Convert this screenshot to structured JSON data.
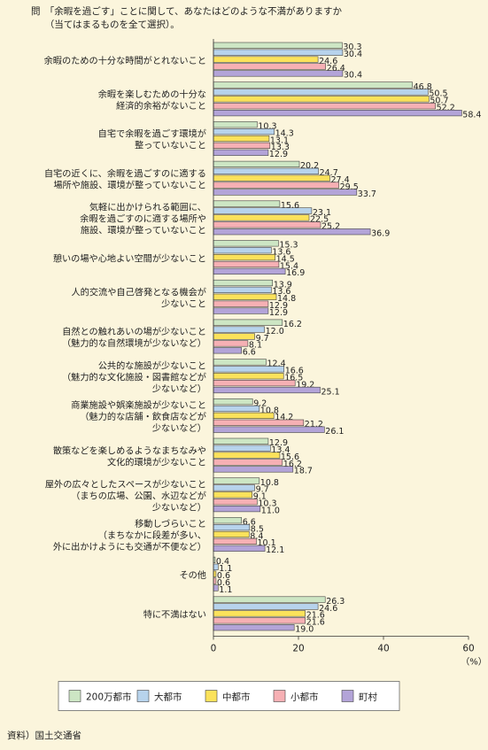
{
  "question": "問　「余暇を過ごす」ことに関して、あなたはどのような不満がありますか\n　　（当てはまるものを全て選択）。",
  "source": "資料）国土交通省",
  "chart_data": {
    "type": "bar",
    "orientation": "horizontal",
    "categories": [
      "余暇のための十分な時間がとれないこと",
      "余暇を楽しむための十分な\n経済的余裕がないこと",
      "自宅で余暇を過ごす環境が\n整っていないこと",
      "自宅の近くに、余暇を過ごすのに適する\n場所や施設、環境が整っていないこと",
      "気軽に出かけられる範囲に、\n余暇を過ごすのに適する場所や\n施設、環境が整っていないこと",
      "憩いの場や心地よい空間が少ないこと",
      "人的交流や自己啓発となる機会が\n少ないこと",
      "自然との触れあいの場が少ないこと\n（魅力的な自然環境が少ないなど）",
      "公共的な施設が少ないこと\n（魅力的な文化施設・図書館などが\n少ないなど）",
      "商業施設や娯楽施設が少ないこと\n（魅力的な店舗・飲食店などが\n少ないなど）",
      "散策などを楽しめるようなまちなみや\n文化的環境が少ないこと",
      "屋外の広々としたスペースが少ないこと\n（まちの広場、公園、水辺などが\n少ないなど）",
      "移動しづらいこと\n（まちなかに段差が多い、\n外に出かけようにも交通が不便など）",
      "その他",
      "特に不満はない"
    ],
    "series": [
      {
        "name": "200万都市",
        "color": "#cde6c4",
        "values": [
          30.3,
          46.8,
          10.3,
          20.2,
          15.6,
          15.3,
          13.9,
          16.2,
          12.4,
          9.2,
          12.9,
          10.8,
          6.6,
          0.4,
          26.3
        ]
      },
      {
        "name": "大都市",
        "color": "#b7d3ec",
        "values": [
          30.4,
          50.5,
          14.3,
          24.7,
          23.1,
          13.6,
          13.6,
          12.0,
          16.6,
          10.8,
          13.4,
          9.7,
          8.5,
          1.1,
          24.6
        ]
      },
      {
        "name": "中都市",
        "color": "#fbe25b",
        "values": [
          24.6,
          50.7,
          13.1,
          27.4,
          22.5,
          14.5,
          14.8,
          9.7,
          16.5,
          14.2,
          15.6,
          9.1,
          8.4,
          0.6,
          21.6
        ]
      },
      {
        "name": "小都市",
        "color": "#f6b0b4",
        "values": [
          26.4,
          52.2,
          13.3,
          29.5,
          25.2,
          15.4,
          12.9,
          8.1,
          19.2,
          21.2,
          16.2,
          10.3,
          10.1,
          0.6,
          21.6
        ]
      },
      {
        "name": "町村",
        "color": "#b3a4d8",
        "values": [
          30.4,
          58.4,
          12.9,
          33.7,
          36.9,
          16.9,
          12.9,
          6.6,
          25.1,
          26.1,
          18.7,
          11.0,
          12.1,
          1.1,
          19.0
        ]
      }
    ],
    "x_ticks": [
      0,
      20,
      40,
      60
    ],
    "xlim": [
      0,
      60
    ],
    "unit": "（%）",
    "grid": false,
    "legend_position": "bottom"
  }
}
